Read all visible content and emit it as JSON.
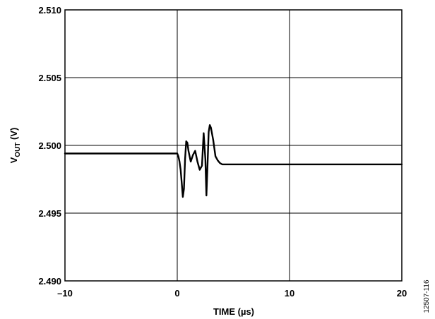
{
  "chart_data": {
    "type": "line",
    "xlabel": "TIME (µs)",
    "ylabel": {
      "main": "V",
      "sub": "OUT",
      "unit": " (V)"
    },
    "xlim": [
      -10,
      20
    ],
    "ylim": [
      2.49,
      2.51
    ],
    "x_ticks": [
      "–10",
      "0",
      "10",
      "20"
    ],
    "x_tick_values": [
      -10,
      0,
      10,
      20
    ],
    "y_ticks": [
      "2.510",
      "2.505",
      "2.500",
      "2.495",
      "2.490"
    ],
    "y_tick_values": [
      2.51,
      2.505,
      2.5,
      2.495,
      2.49
    ],
    "grid": true,
    "line_color": "#000000",
    "series": [
      {
        "x": [
          -10,
          -8,
          -6,
          -4,
          -2,
          -0.5,
          0,
          0.1,
          0.2,
          0.3,
          0.4,
          0.5,
          0.6,
          0.7,
          0.8,
          0.9,
          1.0,
          1.2,
          1.4,
          1.6,
          1.8,
          2.0,
          2.2,
          2.35,
          2.5,
          2.6,
          2.7,
          2.8,
          2.9,
          3.0,
          3.2,
          3.4,
          3.6,
          3.8,
          4.0,
          4.3,
          4.6,
          5,
          6,
          8,
          10,
          12,
          14,
          16,
          18,
          20
        ],
        "y": [
          2.4994,
          2.4994,
          2.4994,
          2.4994,
          2.4994,
          2.4994,
          2.4994,
          2.4992,
          2.4988,
          2.4982,
          2.4972,
          2.4962,
          2.4968,
          2.499,
          2.5003,
          2.5002,
          2.4996,
          2.4988,
          2.4993,
          2.4996,
          2.4988,
          2.4982,
          2.4985,
          2.5009,
          2.499,
          2.4963,
          2.4986,
          2.501,
          2.5015,
          2.5013,
          2.5004,
          2.4992,
          2.4989,
          2.4987,
          2.4986,
          2.4986,
          2.4986,
          2.4986,
          2.4986,
          2.4986,
          2.4986,
          2.4986,
          2.4986,
          2.4986,
          2.4986,
          2.4986
        ]
      }
    ]
  },
  "figure_id": "12507-116"
}
